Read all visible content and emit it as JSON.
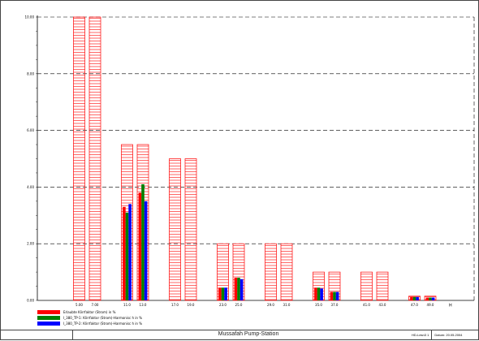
{
  "chart_data": {
    "type": "bar",
    "ylim": [
      0,
      10
    ],
    "y_ticks": [
      "0.00",
      "2.00",
      "4.00",
      "6.00",
      "8.00",
      "10.00"
    ],
    "x_unit": "H",
    "grid": true,
    "harmonics": [
      {
        "label": "5.00",
        "limit": 10.0,
        "values": [
          null,
          null,
          null
        ]
      },
      {
        "label": "7.00",
        "limit": 10.0,
        "values": [
          null,
          null,
          null
        ]
      },
      {
        "label": "11.0",
        "limit": 5.5,
        "values": [
          3.3,
          3.1,
          3.4
        ]
      },
      {
        "label": "13.0",
        "limit": 5.5,
        "values": [
          3.8,
          4.1,
          3.5
        ]
      },
      {
        "label": "17.0",
        "limit": 5.0,
        "values": [
          null,
          null,
          null
        ]
      },
      {
        "label": "19.0",
        "limit": 5.0,
        "values": [
          null,
          null,
          null
        ]
      },
      {
        "label": "23.0",
        "limit": 2.0,
        "values": [
          0.45,
          0.45,
          0.45
        ]
      },
      {
        "label": "25.0",
        "limit": 2.0,
        "values": [
          0.8,
          0.8,
          0.75
        ]
      },
      {
        "label": "29.0",
        "limit": 2.0,
        "values": [
          null,
          null,
          null
        ]
      },
      {
        "label": "31.0",
        "limit": 2.0,
        "values": [
          null,
          null,
          null
        ]
      },
      {
        "label": "35.0",
        "limit": 1.0,
        "values": [
          0.45,
          0.45,
          0.42
        ]
      },
      {
        "label": "37.0",
        "limit": 1.0,
        "values": [
          0.3,
          0.3,
          0.3
        ]
      },
      {
        "label": "41.0",
        "limit": 1.0,
        "values": [
          null,
          null,
          null
        ]
      },
      {
        "label": "43.0",
        "limit": 1.0,
        "values": [
          null,
          null,
          null
        ]
      },
      {
        "label": "47.0",
        "limit": 0.15,
        "values": [
          0.12,
          0.12,
          0.12
        ]
      },
      {
        "label": "49.0",
        "limit": 0.15,
        "values": [
          0.1,
          0.1,
          0.1
        ]
      }
    ],
    "series": [
      {
        "name": "Erlaubte Klirrfaktor (Strom) in %",
        "color": "#ff0000"
      },
      {
        "name": "I_380_TP-1: Klirrfaktor (Strom)-Harmonisc h in %",
        "color": "#008000"
      },
      {
        "name": "I_380_TP-2: Klirrfaktor (Strom)-Harmonisc h in %",
        "color": "#0000ff"
      }
    ],
    "limit_color": "#ff0000"
  },
  "footer": {
    "title": "Mussafah Pump-Station",
    "doc": "HD-Lesn3 1",
    "date": "Datum: 20.05.2004"
  }
}
